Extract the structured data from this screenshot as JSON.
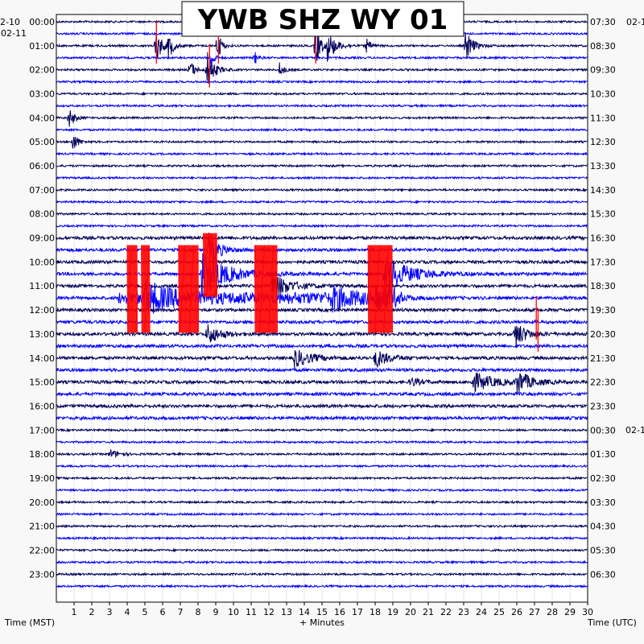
{
  "chart_data": {
    "type": "line",
    "title": "YWB SHZ WY 01",
    "xlabel": "+ Minutes",
    "left_axis_label": "Time (MST)",
    "right_axis_label": "Time (UTC)",
    "xlim": [
      0,
      30
    ],
    "x_ticks": [
      "1",
      "2",
      "3",
      "4",
      "5",
      "6",
      "7",
      "8",
      "9",
      "10",
      "11",
      "12",
      "13",
      "14",
      "15",
      "16",
      "17",
      "18",
      "19",
      "20",
      "21",
      "22",
      "23",
      "24",
      "25",
      "26",
      "27",
      "28",
      "29",
      "30"
    ],
    "left_date_labels": [
      "2-10",
      "02-11"
    ],
    "right_date_labels": [
      "02-1",
      "02-1"
    ],
    "left_hour_labels": [
      "00:00",
      "01:00",
      "02:00",
      "03:00",
      "04:00",
      "05:00",
      "06:00",
      "07:00",
      "08:00",
      "09:00",
      "10:00",
      "11:00",
      "12:00",
      "13:00",
      "14:00",
      "15:00",
      "16:00",
      "17:00",
      "18:00",
      "19:00",
      "20:00",
      "21:00",
      "22:00",
      "23:00"
    ],
    "right_hour_labels": [
      "07:30",
      "08:30",
      "09:30",
      "10:30",
      "11:30",
      "12:30",
      "13:30",
      "14:30",
      "15:30",
      "16:30",
      "17:30",
      "18:30",
      "19:30",
      "20:30",
      "21:30",
      "22:30",
      "23:30",
      "00:30",
      "01:30",
      "02:30",
      "03:30",
      "04:30",
      "05:30",
      "06:30"
    ],
    "trace_rows": 48,
    "trace_colors": [
      "#00005a",
      "#0000ff"
    ],
    "clip_color": "#ff0000",
    "grid": "dotted vertical lines at each minute",
    "events": [
      {
        "row": 2,
        "minute": 5.6,
        "amp": 1.8,
        "dur": 0.6
      },
      {
        "row": 2,
        "minute": 6.3,
        "amp": 1.2,
        "dur": 0.6
      },
      {
        "row": 2,
        "minute": 9.1,
        "amp": 1.6,
        "dur": 0.4
      },
      {
        "row": 2,
        "minute": 14.6,
        "amp": 2.0,
        "dur": 0.6
      },
      {
        "row": 2,
        "minute": 15.3,
        "amp": 1.2,
        "dur": 1.0
      },
      {
        "row": 2,
        "minute": 17.5,
        "amp": 0.6,
        "dur": 0.5
      },
      {
        "row": 2,
        "minute": 23.1,
        "amp": 1.4,
        "dur": 0.8
      },
      {
        "row": 3,
        "minute": 8.7,
        "amp": 1.1,
        "dur": 0.4
      },
      {
        "row": 3,
        "minute": 11.2,
        "amp": 0.6,
        "dur": 0.4
      },
      {
        "row": 4,
        "minute": 7.5,
        "amp": 0.9,
        "dur": 0.6
      },
      {
        "row": 4,
        "minute": 8.5,
        "amp": 1.6,
        "dur": 0.8
      },
      {
        "row": 4,
        "minute": 12.6,
        "amp": 0.6,
        "dur": 0.5
      },
      {
        "row": 8,
        "minute": 0.7,
        "amp": 0.9,
        "dur": 0.6
      },
      {
        "row": 10,
        "minute": 0.9,
        "amp": 0.9,
        "dur": 0.6
      },
      {
        "row": 19,
        "minute": 8.6,
        "amp": 1.4,
        "dur": 1.2
      },
      {
        "row": 21,
        "minute": 8.2,
        "amp": 1.8,
        "dur": 3.0
      },
      {
        "row": 21,
        "minute": 18.5,
        "amp": 1.5,
        "dur": 3.0
      },
      {
        "row": 22,
        "minute": 12.1,
        "amp": 1.2,
        "dur": 2.0
      },
      {
        "row": 23,
        "minute": 5.0,
        "amp": 1.3,
        "dur": 2.5
      },
      {
        "row": 23,
        "minute": 15.5,
        "amp": 0.9,
        "dur": 2.0
      },
      {
        "row": 23,
        "minute": 18.0,
        "amp": 1.1,
        "dur": 2.0
      },
      {
        "row": 26,
        "minute": 8.5,
        "amp": 0.9,
        "dur": 1.5
      },
      {
        "row": 26,
        "minute": 25.9,
        "amp": 1.2,
        "dur": 1.2
      },
      {
        "row": 28,
        "minute": 13.4,
        "amp": 0.8,
        "dur": 2.0
      },
      {
        "row": 28,
        "minute": 18.0,
        "amp": 0.8,
        "dur": 1.5
      },
      {
        "row": 30,
        "minute": 23.5,
        "amp": 0.8,
        "dur": 2.5
      },
      {
        "row": 30,
        "minute": 26.0,
        "amp": 1.0,
        "dur": 1.5
      },
      {
        "row": 30,
        "minute": 20.0,
        "amp": 0.4,
        "dur": 1.0
      },
      {
        "row": 36,
        "minute": 3.0,
        "amp": 0.4,
        "dur": 1.0
      }
    ],
    "clipped_blocks": [
      {
        "minute_start": 4.0,
        "minute_end": 4.55,
        "row_start": 19,
        "row_end": 25.5
      },
      {
        "minute_start": 4.8,
        "minute_end": 5.25,
        "row_start": 19,
        "row_end": 25.5
      },
      {
        "minute_start": 6.9,
        "minute_end": 8.0,
        "row_start": 19,
        "row_end": 25.5
      },
      {
        "minute_start": 8.3,
        "minute_end": 9.1,
        "row_start": 18,
        "row_end": 22.5
      },
      {
        "minute_start": 11.2,
        "minute_end": 12.5,
        "row_start": 19,
        "row_end": 25.5
      },
      {
        "minute_start": 17.6,
        "minute_end": 19.0,
        "row_start": 19,
        "row_end": 25.5
      }
    ],
    "clip_spikes": [
      {
        "row": 2,
        "minute": 5.65
      },
      {
        "row": 2,
        "minute": 9.15
      },
      {
        "row": 2,
        "minute": 14.65
      },
      {
        "row": 4,
        "minute": 8.65
      },
      {
        "row": 25,
        "minute": 27.1
      },
      {
        "row": 26,
        "minute": 27.2
      }
    ],
    "broad_band": {
      "row": 23,
      "minute_start": 3.5,
      "minute_end": 19.5
    }
  }
}
